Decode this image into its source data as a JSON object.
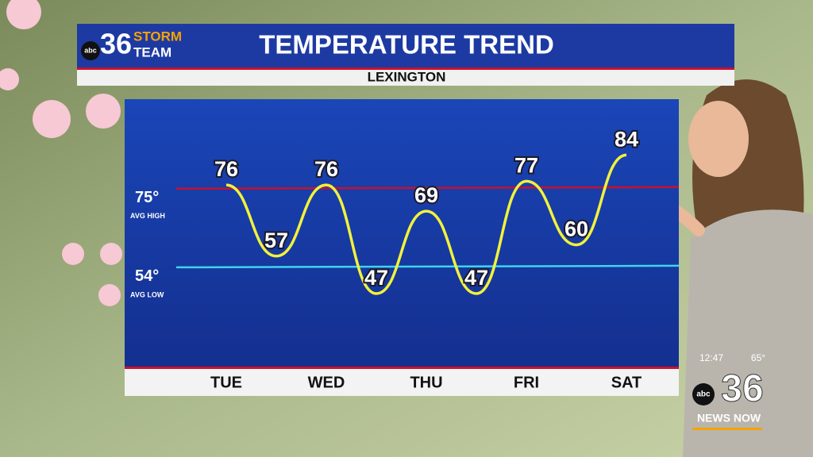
{
  "branding": {
    "station": "36",
    "network": "abc",
    "team": [
      "STORM",
      "TEAM"
    ]
  },
  "chart_data": {
    "type": "line",
    "title": "TEMPERATURE TREND",
    "subtitle": "LEXINGTON",
    "categories": [
      "TUE",
      null,
      "WED",
      null,
      "THU",
      null,
      "FRI",
      null,
      "SAT"
    ],
    "values": [
      76,
      57,
      76,
      47,
      69,
      47,
      77,
      60,
      84
    ],
    "color": "#f2f23a",
    "ylim": [
      27.5,
      98.9
    ],
    "reference_lines": [
      {
        "value": 75,
        "label": "75°",
        "name": "AVG HIGH",
        "color": "#c8102e"
      },
      {
        "value": 54,
        "label": "54°",
        "name": "AVG LOW",
        "color": "#3fd3f0"
      }
    ]
  },
  "bug": {
    "time": "12:47",
    "temperature": "65°",
    "network": "abc",
    "station": "36",
    "tagline": "NEWS NOW"
  }
}
